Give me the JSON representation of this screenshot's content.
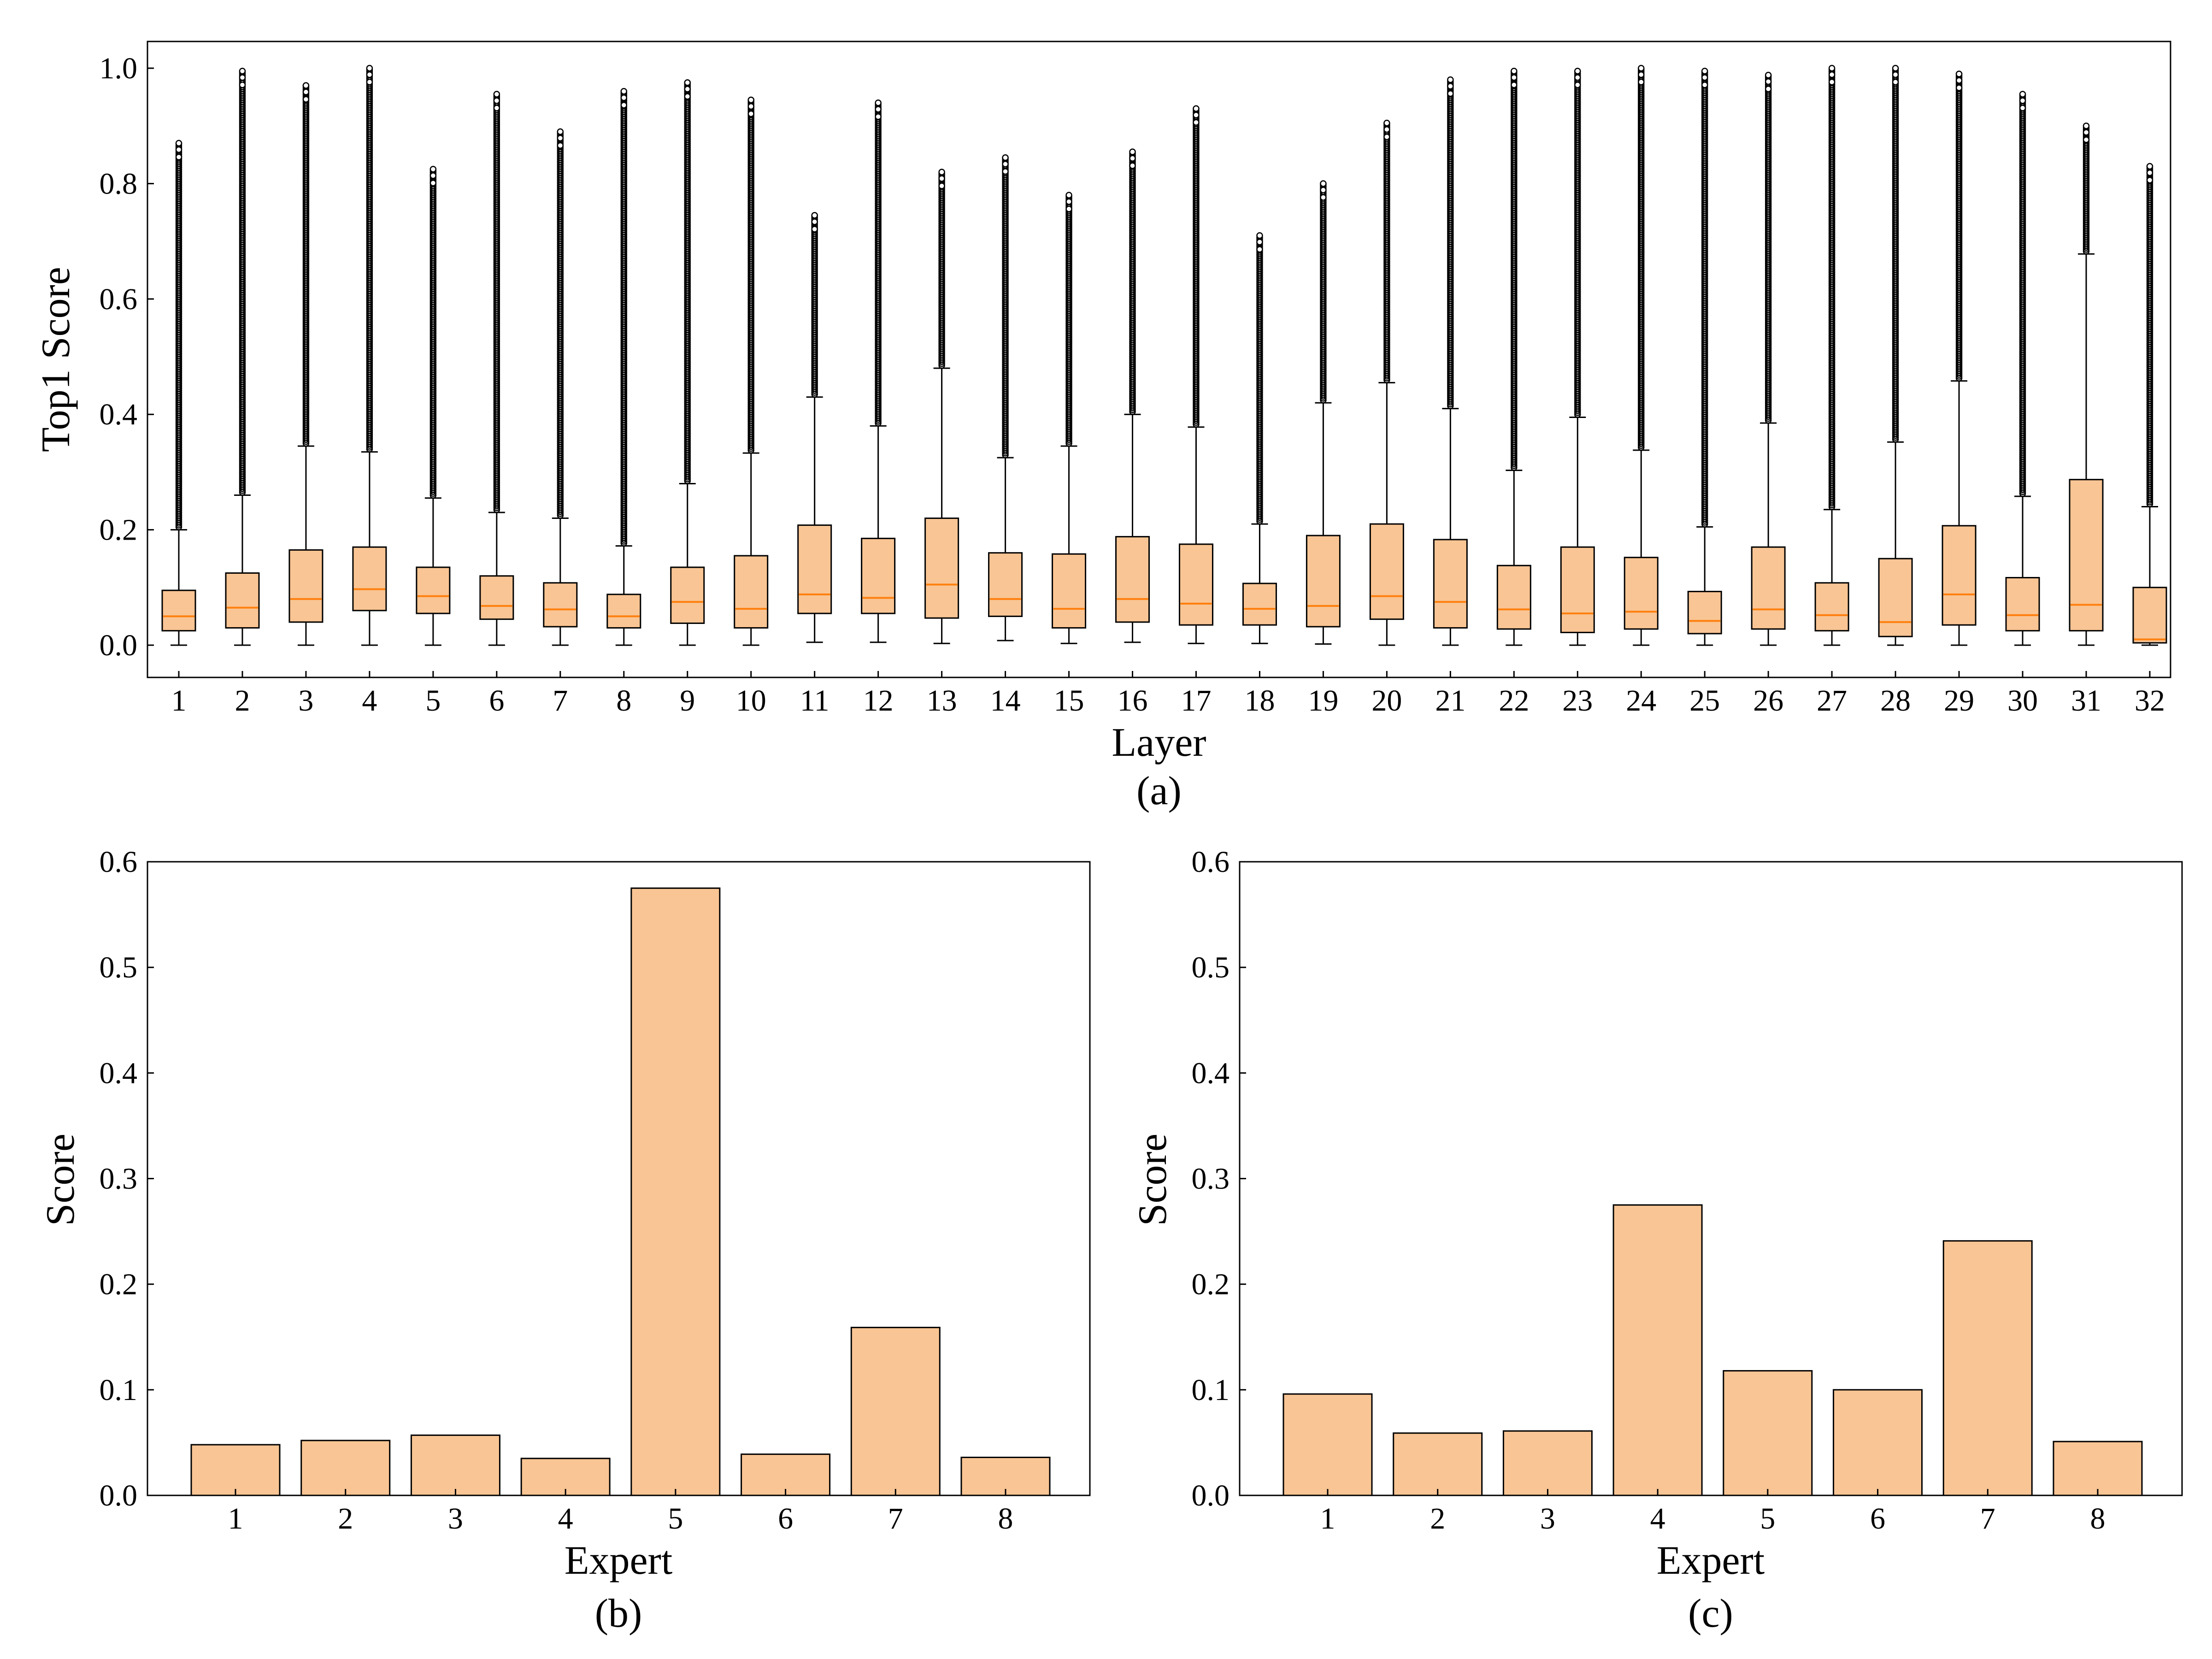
{
  "colors": {
    "fill": "#F9C594",
    "median": "#FF7F0E",
    "edge": "#000000"
  },
  "chart_data": [
    {
      "id": "a",
      "type": "box",
      "caption": "(a)",
      "xlabel": "Layer",
      "ylabel": "Top1 Score",
      "ylim": [
        0.0,
        1.0
      ],
      "yticks": [
        "0.0",
        "0.2",
        "0.4",
        "0.6",
        "0.8",
        "1.0"
      ],
      "categories": [
        "1",
        "2",
        "3",
        "4",
        "5",
        "6",
        "7",
        "8",
        "9",
        "10",
        "11",
        "12",
        "13",
        "14",
        "15",
        "16",
        "17",
        "18",
        "19",
        "20",
        "21",
        "22",
        "23",
        "24",
        "25",
        "26",
        "27",
        "28",
        "29",
        "30",
        "31",
        "32"
      ],
      "boxes": [
        {
          "min": 0.0,
          "q1": 0.025,
          "median": 0.05,
          "q3": 0.095,
          "whisker_high": 0.2,
          "max_outlier": 0.87
        },
        {
          "min": 0.0,
          "q1": 0.03,
          "median": 0.065,
          "q3": 0.125,
          "whisker_high": 0.26,
          "max_outlier": 0.995
        },
        {
          "min": 0.0,
          "q1": 0.04,
          "median": 0.08,
          "q3": 0.165,
          "whisker_high": 0.345,
          "max_outlier": 0.97
        },
        {
          "min": 0.0,
          "q1": 0.06,
          "median": 0.097,
          "q3": 0.17,
          "whisker_high": 0.335,
          "max_outlier": 1.0
        },
        {
          "min": 0.0,
          "q1": 0.055,
          "median": 0.085,
          "q3": 0.135,
          "whisker_high": 0.255,
          "max_outlier": 0.825
        },
        {
          "min": 0.0,
          "q1": 0.045,
          "median": 0.068,
          "q3": 0.12,
          "whisker_high": 0.23,
          "max_outlier": 0.955
        },
        {
          "min": 0.0,
          "q1": 0.032,
          "median": 0.062,
          "q3": 0.108,
          "whisker_high": 0.22,
          "max_outlier": 0.89
        },
        {
          "min": 0.0,
          "q1": 0.03,
          "median": 0.05,
          "q3": 0.088,
          "whisker_high": 0.172,
          "max_outlier": 0.96
        },
        {
          "min": 0.0,
          "q1": 0.038,
          "median": 0.075,
          "q3": 0.135,
          "whisker_high": 0.28,
          "max_outlier": 0.975
        },
        {
          "min": 0.0,
          "q1": 0.03,
          "median": 0.063,
          "q3": 0.155,
          "whisker_high": 0.333,
          "max_outlier": 0.945
        },
        {
          "min": 0.005,
          "q1": 0.055,
          "median": 0.088,
          "q3": 0.208,
          "whisker_high": 0.43,
          "max_outlier": 0.745
        },
        {
          "min": 0.005,
          "q1": 0.055,
          "median": 0.082,
          "q3": 0.185,
          "whisker_high": 0.38,
          "max_outlier": 0.94
        },
        {
          "min": 0.003,
          "q1": 0.047,
          "median": 0.105,
          "q3": 0.22,
          "whisker_high": 0.48,
          "max_outlier": 0.82
        },
        {
          "min": 0.008,
          "q1": 0.05,
          "median": 0.08,
          "q3": 0.16,
          "whisker_high": 0.325,
          "max_outlier": 0.845
        },
        {
          "min": 0.003,
          "q1": 0.03,
          "median": 0.063,
          "q3": 0.158,
          "whisker_high": 0.345,
          "max_outlier": 0.78
        },
        {
          "min": 0.005,
          "q1": 0.04,
          "median": 0.08,
          "q3": 0.188,
          "whisker_high": 0.4,
          "max_outlier": 0.855
        },
        {
          "min": 0.003,
          "q1": 0.035,
          "median": 0.072,
          "q3": 0.175,
          "whisker_high": 0.378,
          "max_outlier": 0.93
        },
        {
          "min": 0.003,
          "q1": 0.035,
          "median": 0.063,
          "q3": 0.107,
          "whisker_high": 0.21,
          "max_outlier": 0.71
        },
        {
          "min": 0.002,
          "q1": 0.032,
          "median": 0.068,
          "q3": 0.19,
          "whisker_high": 0.42,
          "max_outlier": 0.8
        },
        {
          "min": 0.0,
          "q1": 0.045,
          "median": 0.085,
          "q3": 0.21,
          "whisker_high": 0.455,
          "max_outlier": 0.905
        },
        {
          "min": 0.0,
          "q1": 0.03,
          "median": 0.075,
          "q3": 0.183,
          "whisker_high": 0.41,
          "max_outlier": 0.98
        },
        {
          "min": 0.0,
          "q1": 0.028,
          "median": 0.062,
          "q3": 0.138,
          "whisker_high": 0.303,
          "max_outlier": 0.995
        },
        {
          "min": 0.0,
          "q1": 0.022,
          "median": 0.055,
          "q3": 0.17,
          "whisker_high": 0.395,
          "max_outlier": 0.995
        },
        {
          "min": 0.0,
          "q1": 0.028,
          "median": 0.058,
          "q3": 0.152,
          "whisker_high": 0.338,
          "max_outlier": 1.0
        },
        {
          "min": 0.0,
          "q1": 0.02,
          "median": 0.042,
          "q3": 0.093,
          "whisker_high": 0.205,
          "max_outlier": 0.995
        },
        {
          "min": 0.0,
          "q1": 0.028,
          "median": 0.062,
          "q3": 0.17,
          "whisker_high": 0.385,
          "max_outlier": 0.988
        },
        {
          "min": 0.0,
          "q1": 0.025,
          "median": 0.052,
          "q3": 0.108,
          "whisker_high": 0.235,
          "max_outlier": 1.0
        },
        {
          "min": 0.0,
          "q1": 0.015,
          "median": 0.04,
          "q3": 0.15,
          "whisker_high": 0.352,
          "max_outlier": 1.0
        },
        {
          "min": 0.0,
          "q1": 0.035,
          "median": 0.088,
          "q3": 0.207,
          "whisker_high": 0.458,
          "max_outlier": 0.99
        },
        {
          "min": 0.0,
          "q1": 0.025,
          "median": 0.052,
          "q3": 0.117,
          "whisker_high": 0.258,
          "max_outlier": 0.955
        },
        {
          "min": 0.0,
          "q1": 0.025,
          "median": 0.07,
          "q3": 0.287,
          "whisker_high": 0.678,
          "max_outlier": 0.9
        },
        {
          "min": 0.0,
          "q1": 0.004,
          "median": 0.01,
          "q3": 0.1,
          "whisker_high": 0.24,
          "max_outlier": 0.83
        }
      ]
    },
    {
      "id": "b",
      "type": "bar",
      "caption": "(b)",
      "xlabel": "Expert",
      "ylabel": "Score",
      "ylim": [
        0.0,
        0.6
      ],
      "yticks": [
        "0.0",
        "0.1",
        "0.2",
        "0.3",
        "0.4",
        "0.5",
        "0.6"
      ],
      "categories": [
        "1",
        "2",
        "3",
        "4",
        "5",
        "6",
        "7",
        "8"
      ],
      "values": [
        0.048,
        0.052,
        0.057,
        0.035,
        0.575,
        0.039,
        0.159,
        0.036
      ]
    },
    {
      "id": "c",
      "type": "bar",
      "caption": "(c)",
      "xlabel": "Expert",
      "ylabel": "Score",
      "ylim": [
        0.0,
        0.6
      ],
      "yticks": [
        "0.0",
        "0.1",
        "0.2",
        "0.3",
        "0.4",
        "0.5",
        "0.6"
      ],
      "categories": [
        "1",
        "2",
        "3",
        "4",
        "5",
        "6",
        "7",
        "8"
      ],
      "values": [
        0.096,
        0.059,
        0.061,
        0.275,
        0.118,
        0.1,
        0.241,
        0.051
      ]
    }
  ]
}
